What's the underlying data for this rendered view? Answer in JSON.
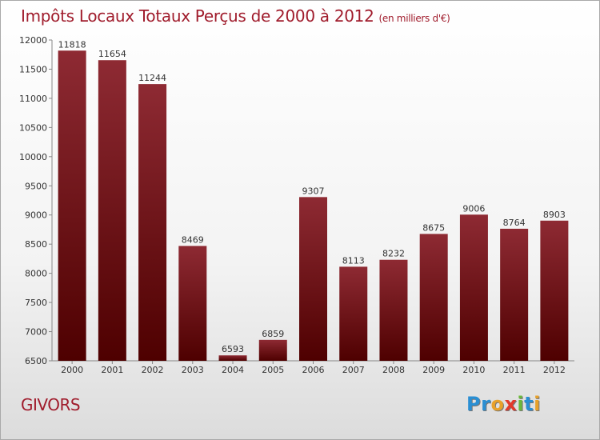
{
  "title": "Impôts Locaux Totaux Perçus de 2000 à 2012",
  "subtitle": "(en milliers d'€)",
  "city": "GIVORS",
  "logo": {
    "letters": [
      "P",
      "r",
      "o",
      "x",
      "i",
      "t",
      "i"
    ],
    "colors": [
      "#2a8fd3",
      "#2a8fd3",
      "#e8a12a",
      "#e23a2b",
      "#6ab93a",
      "#2a8fd3",
      "#e8a12a"
    ]
  },
  "chart_data": {
    "type": "bar",
    "categories": [
      "2000",
      "2001",
      "2002",
      "2003",
      "2004",
      "2005",
      "2006",
      "2007",
      "2008",
      "2009",
      "2010",
      "2011",
      "2012"
    ],
    "values": [
      11818,
      11654,
      11244,
      8469,
      6593,
      6859,
      9307,
      8113,
      8232,
      8675,
      9006,
      8764,
      8903
    ],
    "ylim": [
      6500,
      12000
    ],
    "yticks": [
      "6500",
      "7000",
      "7500",
      "8000",
      "8500",
      "9000",
      "9500",
      "10000",
      "10500",
      "11000",
      "11500",
      "12000"
    ],
    "bar_color": "#8b1a22",
    "grid": false
  }
}
